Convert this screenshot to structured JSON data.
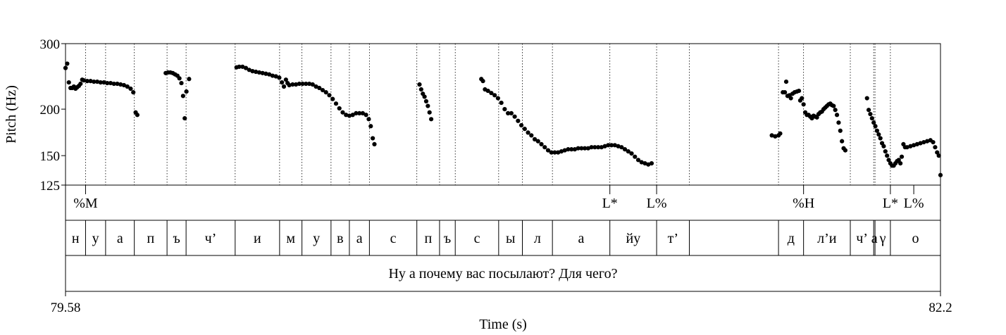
{
  "chart_data": {
    "type": "scatter",
    "xlabel": "Time (s)",
    "ylabel": "Pitch (Hz)",
    "xlim": [
      79.58,
      82.2
    ],
    "ylim": [
      125,
      300
    ],
    "yscale": "log",
    "yticks": [
      125,
      150,
      200,
      300
    ],
    "xtick_labels": [
      "79.58",
      "82.2"
    ],
    "tone_labels": [
      {
        "t": 79.64,
        "label": "%M"
      },
      {
        "t": 81.21,
        "label": "L*"
      },
      {
        "t": 81.35,
        "label": "L%"
      },
      {
        "t": 81.79,
        "label": "%H"
      },
      {
        "t": 82.05,
        "label": "L*"
      },
      {
        "t": 82.12,
        "label": "L%"
      }
    ],
    "segments": [
      {
        "label": "н",
        "start": 79.58,
        "end": 79.64
      },
      {
        "label": "у",
        "start": 79.64,
        "end": 79.7
      },
      {
        "label": "а",
        "start": 79.7,
        "end": 79.786
      },
      {
        "label": "п",
        "start": 79.786,
        "end": 79.884
      },
      {
        "label": "ъ",
        "start": 79.884,
        "end": 79.941
      },
      {
        "label": "ч’",
        "start": 79.941,
        "end": 80.088
      },
      {
        "label": "и",
        "start": 80.088,
        "end": 80.221
      },
      {
        "label": "м",
        "start": 80.221,
        "end": 80.288
      },
      {
        "label": "у",
        "start": 80.288,
        "end": 80.375
      },
      {
        "label": "в",
        "start": 80.375,
        "end": 80.43
      },
      {
        "label": "а",
        "start": 80.43,
        "end": 80.49
      },
      {
        "label": "с",
        "start": 80.49,
        "end": 80.632
      },
      {
        "label": "п",
        "start": 80.632,
        "end": 80.7
      },
      {
        "label": "ъ",
        "start": 80.7,
        "end": 80.747
      },
      {
        "label": "с",
        "start": 80.747,
        "end": 80.877
      },
      {
        "label": "ы",
        "start": 80.877,
        "end": 80.948
      },
      {
        "label": "л",
        "start": 80.948,
        "end": 81.038
      },
      {
        "label": "а",
        "start": 81.038,
        "end": 81.21
      },
      {
        "label": "йу",
        "start": 81.21,
        "end": 81.35
      },
      {
        "label": "т’",
        "start": 81.35,
        "end": 81.448
      },
      {
        "label": "",
        "start": 81.448,
        "end": 81.715
      },
      {
        "label": "д",
        "start": 81.715,
        "end": 81.79
      },
      {
        "label": "л’и",
        "start": 81.79,
        "end": 81.93
      },
      {
        "label": "ч’",
        "start": 81.93,
        "end": 82.0
      },
      {
        "label": "а",
        "start": 82.0,
        "end": 82.004
      },
      {
        "label": "γ",
        "start": 82.004,
        "end": 82.05
      },
      {
        "label": "о",
        "start": 82.05,
        "end": 82.2
      }
    ],
    "sentence": "Ну а почему вас посылают? Для чего?",
    "pitch_contours": [
      [
        [
          79.58,
          258
        ],
        [
          79.585,
          265
        ],
        [
          79.59,
          236
        ],
        [
          79.595,
          228
        ],
        [
          79.6,
          228
        ],
        [
          79.605,
          230
        ],
        [
          79.61,
          227
        ],
        [
          79.615,
          229
        ],
        [
          79.62,
          231
        ],
        [
          79.625,
          234
        ],
        [
          79.63,
          240
        ],
        [
          79.635,
          239
        ],
        [
          79.645,
          238
        ],
        [
          79.655,
          238
        ],
        [
          79.665,
          237
        ],
        [
          79.675,
          237
        ],
        [
          79.685,
          236
        ],
        [
          79.695,
          236
        ],
        [
          79.705,
          235
        ],
        [
          79.715,
          235
        ],
        [
          79.725,
          234
        ],
        [
          79.735,
          234
        ],
        [
          79.745,
          233
        ],
        [
          79.755,
          232
        ],
        [
          79.765,
          230
        ],
        [
          79.775,
          227
        ],
        [
          79.783,
          222
        ],
        [
          79.79,
          196
        ],
        [
          79.795,
          193
        ]
      ],
      [
        [
          79.88,
          250
        ],
        [
          79.887,
          251
        ],
        [
          79.894,
          251
        ],
        [
          79.901,
          250
        ],
        [
          79.908,
          248
        ],
        [
          79.915,
          246
        ],
        [
          79.921,
          242
        ],
        [
          79.927,
          235
        ],
        [
          79.932,
          217
        ],
        [
          79.937,
          189
        ],
        [
          79.942,
          223
        ],
        [
          79.95,
          241
        ]
      ],
      [
        [
          80.092,
          259
        ],
        [
          80.1,
          260
        ],
        [
          80.11,
          260
        ],
        [
          80.12,
          258
        ],
        [
          80.13,
          255
        ],
        [
          80.14,
          253
        ],
        [
          80.15,
          252
        ],
        [
          80.16,
          251
        ],
        [
          80.17,
          250
        ],
        [
          80.18,
          249
        ],
        [
          80.19,
          248
        ],
        [
          80.2,
          246
        ],
        [
          80.21,
          245
        ],
        [
          80.22,
          243
        ],
        [
          80.228,
          236
        ],
        [
          80.234,
          230
        ],
        [
          80.24,
          240
        ],
        [
          80.245,
          235
        ],
        [
          80.25,
          232
        ],
        [
          80.26,
          233
        ],
        [
          80.27,
          233
        ],
        [
          80.28,
          234
        ],
        [
          80.29,
          234
        ],
        [
          80.3,
          234
        ],
        [
          80.31,
          234
        ],
        [
          80.32,
          233
        ],
        [
          80.33,
          230
        ],
        [
          80.34,
          228
        ],
        [
          80.35,
          225
        ],
        [
          80.36,
          222
        ],
        [
          80.37,
          218
        ],
        [
          80.38,
          213
        ],
        [
          80.39,
          207
        ],
        [
          80.4,
          201
        ],
        [
          80.41,
          196
        ],
        [
          80.42,
          193
        ],
        [
          80.43,
          192
        ],
        [
          80.44,
          193
        ],
        [
          80.45,
          195
        ],
        [
          80.46,
          195
        ],
        [
          80.47,
          195
        ],
        [
          80.48,
          193
        ],
        [
          80.488,
          188
        ],
        [
          80.494,
          180
        ],
        [
          80.5,
          167
        ],
        [
          80.505,
          161
        ]
      ],
      [
        [
          80.64,
          233
        ],
        [
          80.645,
          226
        ],
        [
          80.65,
          220
        ],
        [
          80.655,
          216
        ],
        [
          80.66,
          210
        ],
        [
          80.665,
          204
        ],
        [
          80.67,
          196
        ],
        [
          80.675,
          188
        ]
      ],
      [
        [
          80.825,
          241
        ],
        [
          80.83,
          238
        ],
        [
          80.836,
          226
        ],
        [
          80.845,
          224
        ],
        [
          80.855,
          221
        ],
        [
          80.865,
          218
        ],
        [
          80.875,
          214
        ],
        [
          80.885,
          208
        ],
        [
          80.895,
          200
        ],
        [
          80.905,
          195
        ],
        [
          80.915,
          195
        ],
        [
          80.925,
          191
        ],
        [
          80.935,
          186
        ],
        [
          80.945,
          181
        ],
        [
          80.955,
          177
        ],
        [
          80.965,
          173
        ],
        [
          80.975,
          170
        ],
        [
          80.985,
          166
        ],
        [
          80.995,
          164
        ],
        [
          81.005,
          161
        ],
        [
          81.015,
          158
        ],
        [
          81.025,
          155
        ],
        [
          81.035,
          153
        ],
        [
          81.045,
          153
        ],
        [
          81.055,
          153
        ],
        [
          81.065,
          154
        ],
        [
          81.075,
          155
        ],
        [
          81.085,
          156
        ],
        [
          81.095,
          156
        ],
        [
          81.105,
          156
        ],
        [
          81.115,
          157
        ],
        [
          81.125,
          157
        ],
        [
          81.135,
          157
        ],
        [
          81.145,
          157
        ],
        [
          81.155,
          158
        ],
        [
          81.165,
          158
        ],
        [
          81.175,
          158
        ],
        [
          81.185,
          158
        ],
        [
          81.195,
          159
        ],
        [
          81.205,
          160
        ],
        [
          81.215,
          160
        ],
        [
          81.225,
          160
        ],
        [
          81.235,
          159
        ],
        [
          81.245,
          158
        ],
        [
          81.255,
          156
        ],
        [
          81.265,
          154
        ],
        [
          81.275,
          152
        ],
        [
          81.285,
          149
        ],
        [
          81.295,
          146
        ],
        [
          81.305,
          144
        ],
        [
          81.315,
          143
        ],
        [
          81.325,
          142
        ],
        [
          81.335,
          143
        ]
      ],
      [
        [
          81.695,
          170
        ],
        [
          81.705,
          169
        ],
        [
          81.715,
          170
        ],
        [
          81.72,
          172
        ],
        [
          81.728,
          222
        ],
        [
          81.734,
          222
        ],
        [
          81.738,
          237
        ],
        [
          81.742,
          217
        ],
        [
          81.748,
          218
        ],
        [
          81.752,
          214
        ],
        [
          81.757,
          220
        ],
        [
          81.763,
          222
        ],
        [
          81.77,
          223
        ],
        [
          81.776,
          224
        ],
        [
          81.78,
          211
        ],
        [
          81.785,
          214
        ],
        [
          81.79,
          206
        ],
        [
          81.795,
          196
        ],
        [
          81.8,
          193
        ],
        [
          81.805,
          193
        ],
        [
          81.81,
          191
        ],
        [
          81.815,
          189
        ],
        [
          81.82,
          192
        ],
        [
          81.825,
          191
        ],
        [
          81.83,
          190
        ],
        [
          81.835,
          194
        ],
        [
          81.84,
          196
        ],
        [
          81.845,
          197
        ],
        [
          81.85,
          200
        ],
        [
          81.855,
          202
        ],
        [
          81.86,
          204
        ],
        [
          81.865,
          206
        ],
        [
          81.87,
          207
        ],
        [
          81.875,
          205
        ],
        [
          81.88,
          204
        ],
        [
          81.885,
          199
        ],
        [
          81.89,
          193
        ],
        [
          81.895,
          184
        ],
        [
          81.9,
          175
        ],
        [
          81.905,
          164
        ],
        [
          81.91,
          157
        ],
        [
          81.915,
          155
        ]
      ],
      [
        [
          81.98,
          214
        ],
        [
          81.985,
          199
        ],
        [
          81.99,
          194
        ],
        [
          81.995,
          189
        ],
        [
          82.0,
          184
        ],
        [
          82.005,
          180
        ],
        [
          82.01,
          175
        ],
        [
          82.015,
          171
        ],
        [
          82.02,
          167
        ],
        [
          82.025,
          162
        ],
        [
          82.03,
          159
        ],
        [
          82.035,
          154
        ],
        [
          82.04,
          150
        ],
        [
          82.045,
          146
        ],
        [
          82.05,
          143
        ],
        [
          82.055,
          141
        ],
        [
          82.06,
          141
        ],
        [
          82.065,
          143
        ],
        [
          82.07,
          145
        ],
        [
          82.075,
          146
        ],
        [
          82.08,
          143
        ],
        [
          82.084,
          149
        ],
        [
          82.089,
          161
        ],
        [
          82.094,
          158
        ],
        [
          82.1,
          158
        ],
        [
          82.11,
          159
        ],
        [
          82.12,
          160
        ],
        [
          82.13,
          161
        ],
        [
          82.14,
          162
        ],
        [
          82.15,
          163
        ],
        [
          82.16,
          164
        ],
        [
          82.17,
          165
        ],
        [
          82.178,
          163
        ],
        [
          82.184,
          158
        ],
        [
          82.19,
          153
        ],
        [
          82.195,
          150
        ],
        [
          82.2,
          133
        ]
      ]
    ]
  }
}
